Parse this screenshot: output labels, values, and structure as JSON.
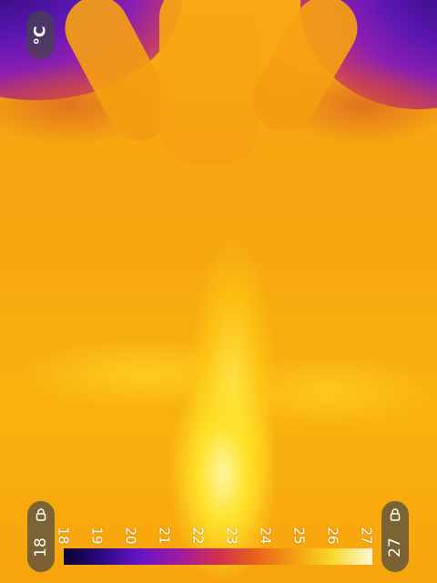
{
  "unit_toggle": {
    "label": "°C"
  },
  "range_min": {
    "value": "18",
    "icon": "lock-icon"
  },
  "range_max": {
    "value": "27",
    "icon": "lock-icon"
  },
  "color_scale": {
    "palette": "iron",
    "ticks": [
      "18",
      "19",
      "20",
      "21",
      "22",
      "23",
      "24",
      "25",
      "26",
      "27"
    ],
    "colors": [
      "#0a0030",
      "#6a14c8",
      "#d03050",
      "#f4a010",
      "#fff8d8"
    ]
  }
}
